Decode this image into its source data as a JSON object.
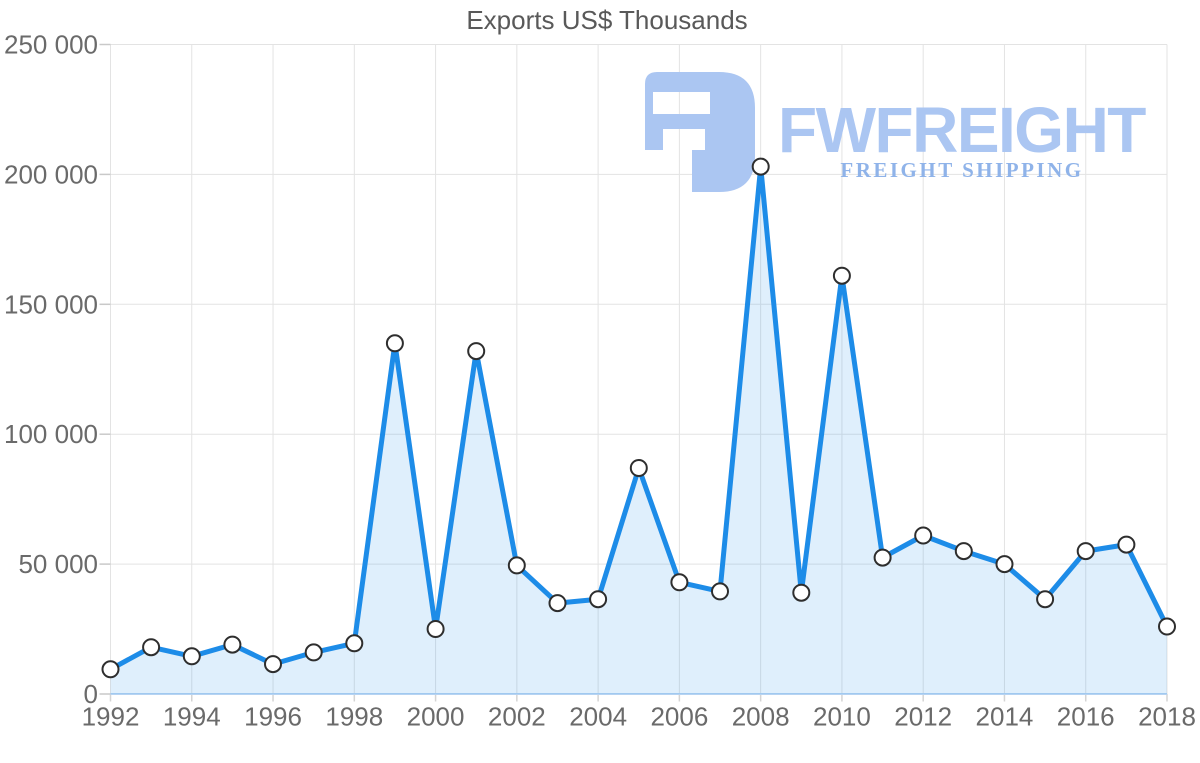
{
  "title": "Exports US$ Thousands",
  "watermark": {
    "wordmark": "FWFREIGHT",
    "tagline": "FREIGHT SHIPPING"
  },
  "colors": {
    "line": "#1d8ce8",
    "area_fill": "rgba(29,140,232,0.14)",
    "marker_fill": "#ffffff",
    "marker_stroke": "#2e2e2e",
    "grid": "#e3e3e3",
    "y_tick": "#c9c9c9",
    "x_tick": "#d4d4d4",
    "baseline": "#b6d3f2",
    "axis_label": "#6a6a6a",
    "title": "#595959",
    "watermark": "#abc6f2",
    "watermark_tagline": "#8fb3e9"
  },
  "chart_data": {
    "type": "area",
    "title": "Exports US$ Thousands",
    "xlabel": "",
    "ylabel": "",
    "x": [
      1992,
      1993,
      1994,
      1995,
      1996,
      1997,
      1998,
      1999,
      2000,
      2001,
      2002,
      2003,
      2004,
      2005,
      2006,
      2007,
      2008,
      2009,
      2010,
      2011,
      2012,
      2013,
      2014,
      2015,
      2016,
      2017,
      2018
    ],
    "values": [
      9500,
      18000,
      14500,
      19000,
      11500,
      16000,
      19500,
      135000,
      25000,
      132000,
      49500,
      35000,
      36500,
      87000,
      43000,
      39500,
      203000,
      39000,
      161000,
      52500,
      61000,
      55000,
      50000,
      36500,
      55000,
      57500,
      26000
    ],
    "ylim": [
      0,
      250000
    ],
    "yticks": [
      0,
      50000,
      100000,
      150000,
      200000,
      250000
    ],
    "ytick_labels": [
      "0",
      "50 000",
      "100 000",
      "150 000",
      "200 000",
      "250 000"
    ],
    "xticks": [
      1992,
      1994,
      1996,
      1998,
      2000,
      2002,
      2004,
      2006,
      2008,
      2010,
      2012,
      2014,
      2016,
      2018
    ],
    "xtick_labels": [
      "1992",
      "1994",
      "1996",
      "1998",
      "2000",
      "2002",
      "2004",
      "2006",
      "2008",
      "2010",
      "2012",
      "2014",
      "2016",
      "2018"
    ],
    "grid": true,
    "legend": "none",
    "marker": "circle"
  }
}
